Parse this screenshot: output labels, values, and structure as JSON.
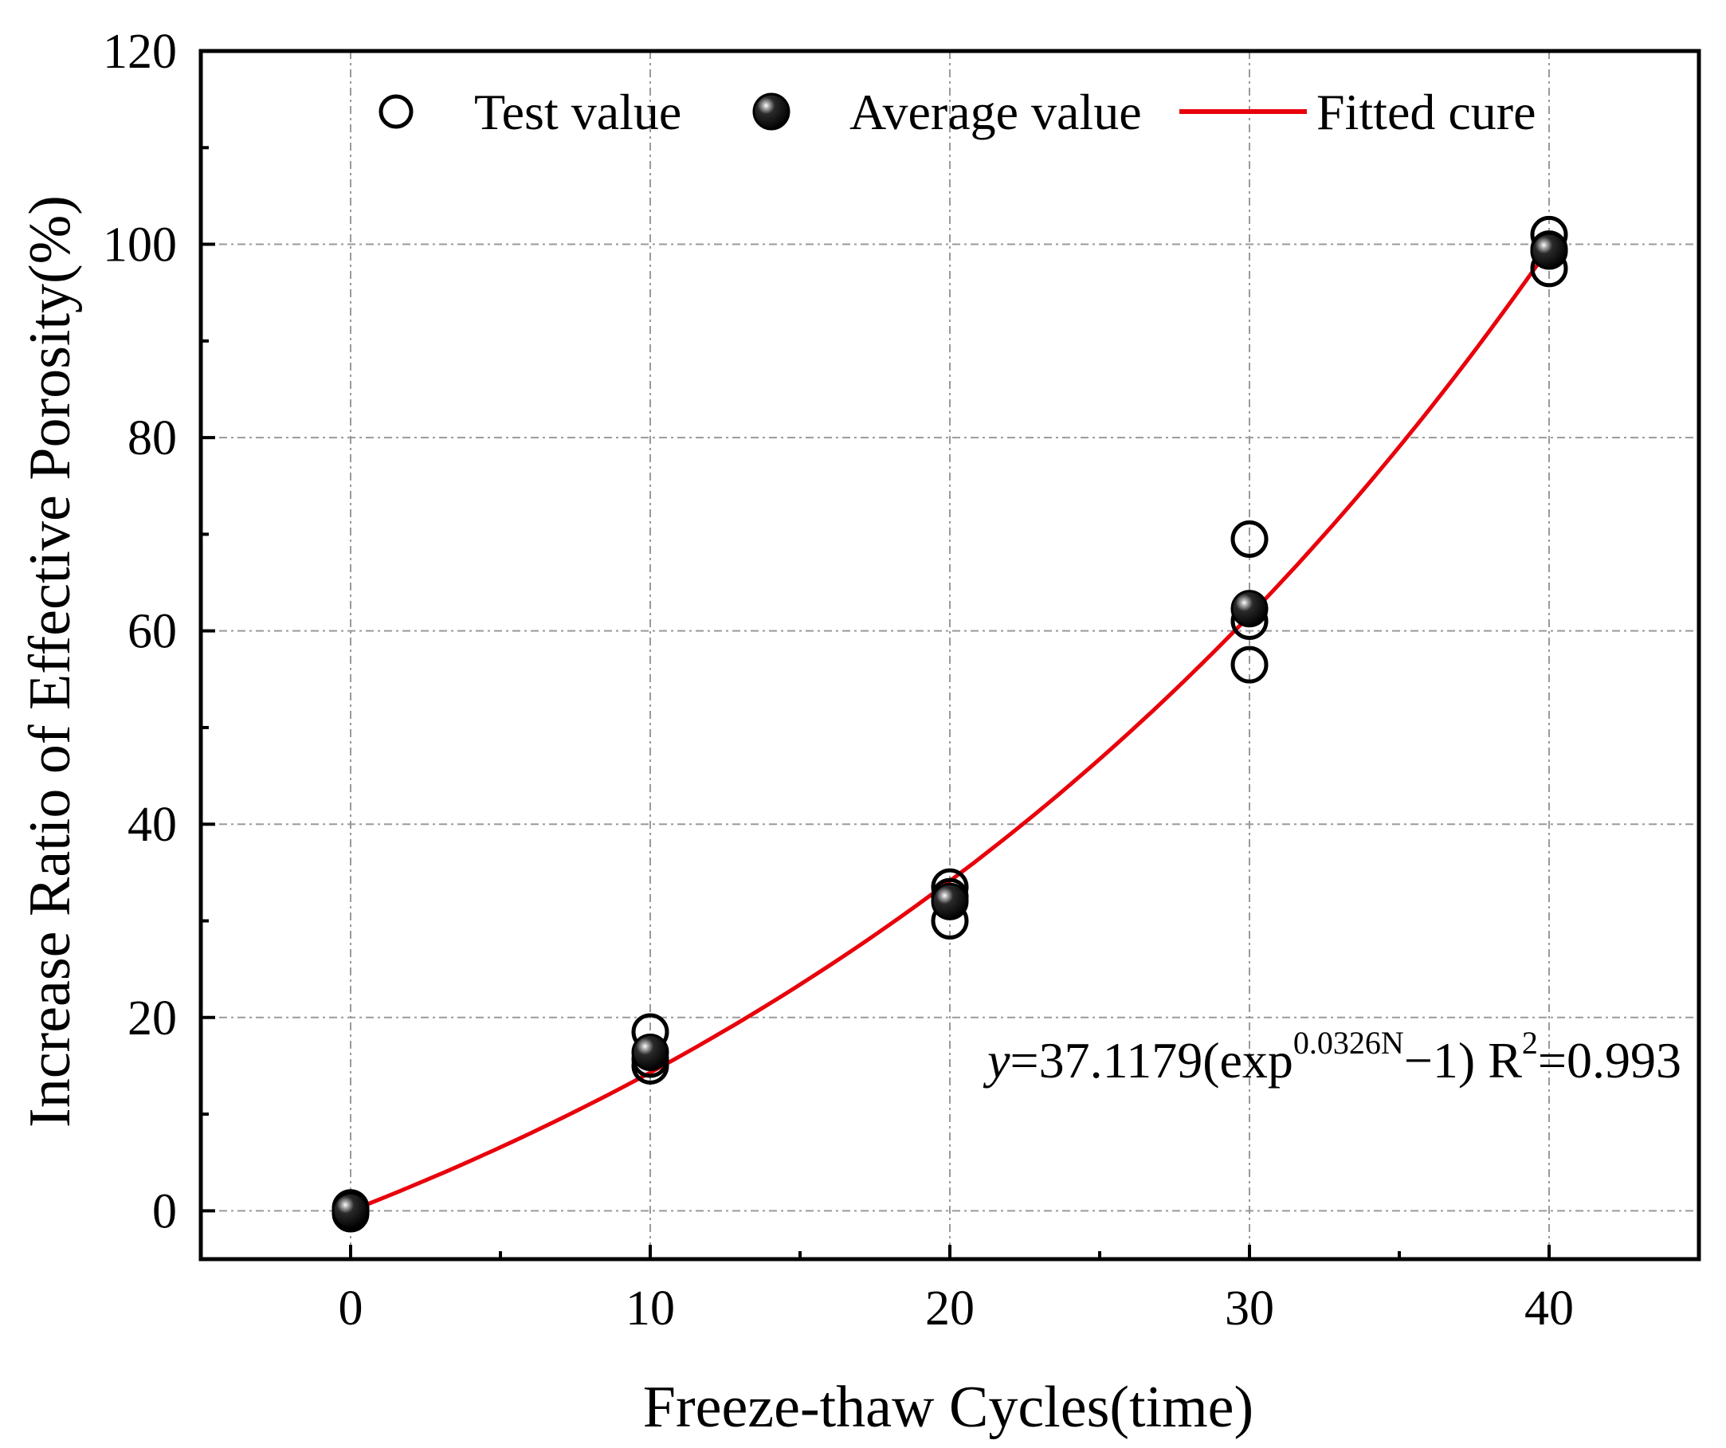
{
  "chart_data": {
    "type": "scatter",
    "title": "",
    "xlabel": "Freeze-thaw Cycles(time)",
    "ylabel": "Increase Ratio of Effective Porosity(%)",
    "xlim": [
      -5,
      45
    ],
    "ylim": [
      -5,
      120
    ],
    "x_ticks": [
      0,
      10,
      20,
      30,
      40
    ],
    "y_ticks": [
      0,
      20,
      40,
      60,
      80,
      100,
      120
    ],
    "grid": true,
    "legend": {
      "position": "top",
      "entries": [
        {
          "label": "Test value",
          "marker": "open-circle"
        },
        {
          "label": "Average value",
          "marker": "filled-sphere"
        },
        {
          "label": "Fitted cure",
          "marker": "red-line"
        }
      ]
    },
    "series": [
      {
        "name": "Test value",
        "type": "scatter",
        "points": [
          {
            "x": 0,
            "y": 0
          },
          {
            "x": 0,
            "y": 0.3
          },
          {
            "x": 0,
            "y": -0.3
          },
          {
            "x": 10,
            "y": 18.5
          },
          {
            "x": 10,
            "y": 15.7
          },
          {
            "x": 10,
            "y": 15.0
          },
          {
            "x": 20,
            "y": 33.5
          },
          {
            "x": 20,
            "y": 32.5
          },
          {
            "x": 20,
            "y": 30.0
          },
          {
            "x": 30,
            "y": 69.5
          },
          {
            "x": 30,
            "y": 61.0
          },
          {
            "x": 30,
            "y": 56.5
          },
          {
            "x": 40,
            "y": 101.0
          },
          {
            "x": 40,
            "y": 99.5
          },
          {
            "x": 40,
            "y": 97.5
          }
        ]
      },
      {
        "name": "Average value",
        "type": "scatter",
        "points": [
          {
            "x": 0,
            "y": 0
          },
          {
            "x": 10,
            "y": 16.4
          },
          {
            "x": 20,
            "y": 32.0
          },
          {
            "x": 30,
            "y": 62.3
          },
          {
            "x": 40,
            "y": 99.3
          }
        ]
      },
      {
        "name": "Fitted cure",
        "type": "line",
        "function": {
          "form": "a*(exp(b*N)-1)",
          "a": 37.1179,
          "b": 0.0326
        },
        "x_range": [
          0,
          40
        ]
      }
    ],
    "annotation": {
      "y_var": "y",
      "eq_main": "=37.1179(exp",
      "eq_exp": "0.0326N",
      "eq_tail": "−1)  R",
      "r2_exp": "2",
      "r2_val": "=0.993"
    }
  },
  "colors": {
    "axis": "#000000",
    "grid": "#9a9a9a",
    "fit_line": "#e8000b",
    "marker_fill": "#000000"
  }
}
